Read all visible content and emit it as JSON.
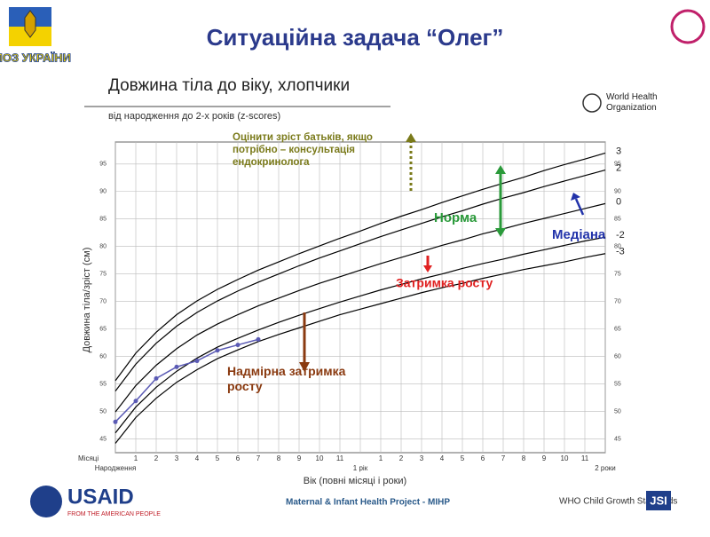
{
  "header": {
    "title": "Ситуаційна задача “Олег”",
    "ministry": "МОЗ УКРАЇНИ"
  },
  "who_logo": "World Health Organization",
  "chart_data": {
    "type": "line",
    "title": "Довжина тіла до віку, хлопчики",
    "subtitle": "від народження до 2-х років (z-scores)",
    "y_label": "Довжина тіла/зріст (см)",
    "x_label": "Вік (повні місяці і роки)",
    "x_unit_label": "Місяці",
    "source": "WHO Child Growth Standards",
    "x": [
      0,
      1,
      2,
      3,
      4,
      5,
      6,
      7,
      8,
      9,
      10,
      11,
      12,
      13,
      14,
      15,
      16,
      17,
      18,
      19,
      20,
      21,
      22,
      23,
      24
    ],
    "xlim": [
      0,
      24
    ],
    "xticks": [
      {
        "value": 0,
        "label": "Народження"
      },
      1,
      2,
      3,
      4,
      5,
      6,
      7,
      8,
      9,
      10,
      11,
      {
        "value": 12,
        "label": "1 рік"
      },
      {
        "value": 13,
        "label": "1"
      },
      {
        "value": 14,
        "label": "2"
      },
      {
        "value": 15,
        "label": "3"
      },
      {
        "value": 16,
        "label": "4"
      },
      {
        "value": 17,
        "label": "5"
      },
      {
        "value": 18,
        "label": "6"
      },
      {
        "value": 19,
        "label": "7"
      },
      {
        "value": 20,
        "label": "8"
      },
      {
        "value": 21,
        "label": "9"
      },
      {
        "value": 22,
        "label": "10"
      },
      {
        "value": 23,
        "label": "11"
      },
      {
        "value": 24,
        "label": "2 роки"
      }
    ],
    "ylim": [
      42.5,
      99
    ],
    "yticks": [
      45,
      50,
      55,
      60,
      65,
      70,
      75,
      80,
      85,
      90,
      95
    ],
    "grid": true,
    "series": [
      {
        "name": "3",
        "color": "#000000",
        "values": [
          55.6,
          60.6,
          64.4,
          67.6,
          70.1,
          72.2,
          74.0,
          75.7,
          77.2,
          78.7,
          80.1,
          81.5,
          82.8,
          84.2,
          85.5,
          86.7,
          88.0,
          89.2,
          90.4,
          91.5,
          92.6,
          93.8,
          94.9,
          95.9,
          97.0
        ]
      },
      {
        "name": "2",
        "color": "#000000",
        "values": [
          53.7,
          58.6,
          62.4,
          65.5,
          68.0,
          70.1,
          71.9,
          73.5,
          75.0,
          76.5,
          77.9,
          79.2,
          80.5,
          81.8,
          83.0,
          84.2,
          85.4,
          86.5,
          87.7,
          88.8,
          89.8,
          90.9,
          91.9,
          92.9,
          93.9
        ]
      },
      {
        "name": "0",
        "color": "#000000",
        "values": [
          49.9,
          54.7,
          58.4,
          61.4,
          63.9,
          65.9,
          67.6,
          69.2,
          70.6,
          72.0,
          73.3,
          74.5,
          75.7,
          76.9,
          78.0,
          79.1,
          80.2,
          81.2,
          82.3,
          83.2,
          84.2,
          85.1,
          86.0,
          86.9,
          87.8
        ]
      },
      {
        "name": "-2",
        "color": "#000000",
        "values": [
          46.1,
          50.8,
          54.4,
          57.3,
          59.7,
          61.7,
          63.3,
          64.8,
          66.2,
          67.5,
          68.7,
          69.9,
          71.0,
          72.1,
          73.1,
          74.1,
          75.0,
          76.0,
          76.9,
          77.7,
          78.6,
          79.4,
          80.2,
          81.0,
          81.7
        ]
      },
      {
        "name": "-3",
        "color": "#000000",
        "values": [
          44.2,
          48.9,
          52.4,
          55.3,
          57.6,
          59.6,
          61.2,
          62.7,
          64.0,
          65.2,
          66.4,
          67.6,
          68.6,
          69.6,
          70.6,
          71.6,
          72.5,
          73.3,
          74.2,
          75.0,
          75.8,
          76.5,
          77.2,
          78.0,
          78.7
        ]
      }
    ],
    "patient": {
      "color": "#5a5ab4",
      "x": [
        0,
        1,
        2,
        3,
        4,
        5,
        6,
        7
      ],
      "values": [
        48.1,
        51.9,
        56.0,
        58.1,
        59.2,
        61.1,
        62.1,
        63.1
      ]
    },
    "annotations": {
      "parents": "Оцінити зріст батьків, якщо потрібно – консультація ендокринолога",
      "norm": "Норма",
      "median": "Медіана",
      "stunting": "Затримка росту",
      "severe": "Надмірна затримка росту"
    }
  },
  "footer": {
    "usaid": "USAID",
    "usaid_sub": "FROM THE AMERICAN PEOPLE",
    "project": "Maternal & Infant Health Project - MIHP",
    "jsi": "JSI"
  }
}
